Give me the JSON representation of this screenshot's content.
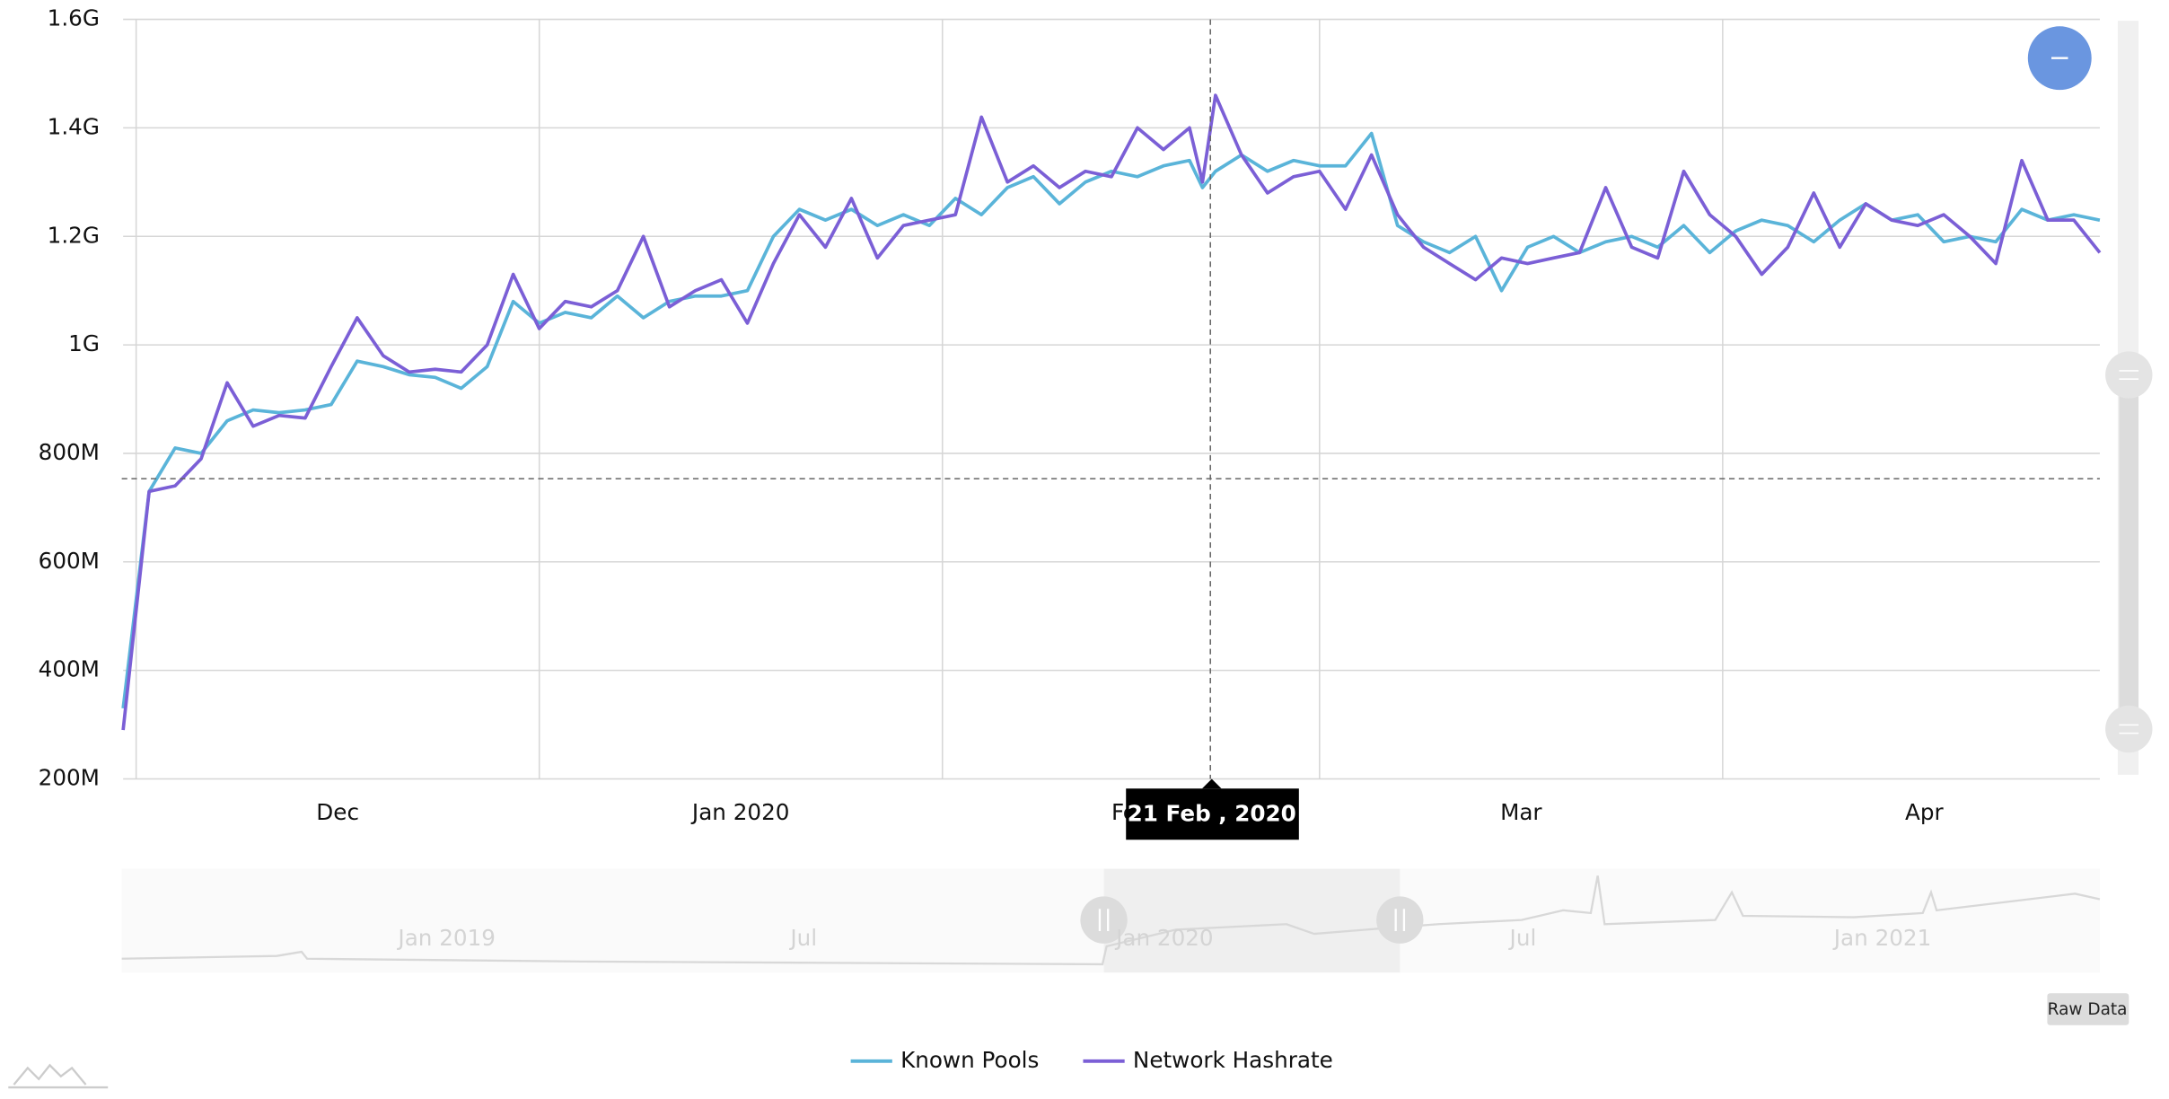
{
  "chart_data": {
    "type": "line",
    "x": [
      -1,
      1,
      3,
      5,
      7,
      9,
      11,
      13,
      15,
      17,
      19,
      21,
      23,
      25,
      27,
      29,
      31,
      33,
      35,
      37,
      39,
      41,
      43,
      45,
      47,
      49,
      51,
      53,
      55,
      57,
      59,
      61,
      63,
      65,
      67,
      69,
      71,
      73,
      75,
      77,
      79,
      81,
      82,
      83,
      85,
      87,
      89,
      91,
      93,
      95,
      97,
      99,
      101,
      103,
      105,
      107,
      109,
      111,
      113,
      115,
      117,
      119,
      121,
      123,
      125,
      127,
      129,
      131,
      133,
      135,
      137,
      139,
      141,
      143,
      145,
      147,
      149,
      151
    ],
    "series": [
      {
        "name": "Known Pools",
        "color": "#5ab4d9",
        "values": [
          330000000.0,
          730000000.0,
          810000000.0,
          800000000.0,
          860000000.0,
          880000000.0,
          875000000.0,
          880000000.0,
          890000000.0,
          970000000.0,
          960000000.0,
          945000000.0,
          940000000.0,
          920000000.0,
          960000000.0,
          1080000000.0,
          1040000000.0,
          1060000000.0,
          1050000000.0,
          1090000000.0,
          1050000000.0,
          1080000000.0,
          1090000000.0,
          1090000000.0,
          1100000000.0,
          1200000000.0,
          1250000000.0,
          1230000000.0,
          1250000000.0,
          1220000000.0,
          1240000000.0,
          1220000000.0,
          1270000000.0,
          1240000000.0,
          1290000000.0,
          1310000000.0,
          1260000000.0,
          1300000000.0,
          1320000000.0,
          1310000000.0,
          1330000000.0,
          1340000000.0,
          1290000000.0,
          1320000000.0,
          1350000000.0,
          1320000000.0,
          1340000000.0,
          1330000000.0,
          1330000000.0,
          1390000000.0,
          1220000000.0,
          1190000000.0,
          1170000000.0,
          1200000000.0,
          1100000000.0,
          1180000000.0,
          1200000000.0,
          1170000000.0,
          1190000000.0,
          1200000000.0,
          1180000000.0,
          1220000000.0,
          1170000000.0,
          1210000000.0,
          1230000000.0,
          1220000000.0,
          1190000000.0,
          1230000000.0,
          1260000000.0,
          1230000000.0,
          1240000000.0,
          1190000000.0,
          1200000000.0,
          1190000000.0,
          1250000000.0,
          1230000000.0,
          1240000000.0,
          1230000000.0
        ]
      },
      {
        "name": "Network Hashrate",
        "color": "#7b5fd6",
        "values": [
          290000000.0,
          730000000.0,
          740000000.0,
          790000000.0,
          930000000.0,
          850000000.0,
          870000000.0,
          865000000.0,
          960000000.0,
          1050000000.0,
          980000000.0,
          950000000.0,
          955000000.0,
          950000000.0,
          1000000000.0,
          1130000000.0,
          1030000000.0,
          1080000000.0,
          1070000000.0,
          1100000000.0,
          1200000000.0,
          1070000000.0,
          1100000000.0,
          1120000000.0,
          1040000000.0,
          1150000000.0,
          1240000000.0,
          1180000000.0,
          1270000000.0,
          1160000000.0,
          1220000000.0,
          1230000000.0,
          1240000000.0,
          1420000000.0,
          1300000000.0,
          1330000000.0,
          1290000000.0,
          1320000000.0,
          1310000000.0,
          1400000000.0,
          1360000000.0,
          1400000000.0,
          1300000000.0,
          1460000000.0,
          1350000000.0,
          1280000000.0,
          1310000000.0,
          1320000000.0,
          1250000000.0,
          1350000000.0,
          1240000000.0,
          1180000000.0,
          1150000000.0,
          1120000000.0,
          1160000000.0,
          1150000000.0,
          1160000000.0,
          1170000000.0,
          1290000000.0,
          1180000000.0,
          1160000000.0,
          1320000000.0,
          1240000000.0,
          1200000000.0,
          1130000000.0,
          1180000000.0,
          1280000000.0,
          1180000000.0,
          1260000000.0,
          1230000000.0,
          1220000000.0,
          1240000000.0,
          1200000000.0,
          1150000000.0,
          1340000000.0,
          1230000000.0,
          1230000000.0,
          1170000000.0
        ]
      }
    ],
    "xlim": [
      -1,
      151
    ],
    "xticks": [
      {
        "value": 0,
        "label": "Dec"
      },
      {
        "value": 31,
        "label": "Jan 2020"
      },
      {
        "value": 62,
        "label": "Feb"
      },
      {
        "value": 91,
        "label": "Mar"
      },
      {
        "value": 122,
        "label": "Apr"
      }
    ],
    "ylim": [
      200000000.0,
      1600000000.0
    ],
    "yticks": [
      {
        "value": 200000000.0,
        "label": "200M"
      },
      {
        "value": 400000000.0,
        "label": "400M"
      },
      {
        "value": 600000000.0,
        "label": "600M"
      },
      {
        "value": 800000000.0,
        "label": "800M"
      },
      {
        "value": 1000000000.0,
        "label": "1G"
      },
      {
        "value": 1200000000.0,
        "label": "1.2G"
      },
      {
        "value": 1400000000.0,
        "label": "1.4G"
      },
      {
        "value": 1600000000.0,
        "label": "1.6G"
      }
    ],
    "grid": true,
    "tooltip": "21 Feb , 2020",
    "navigator_labels": [
      "Jan 2019",
      "Jul",
      "Jan 2020",
      "Jul",
      "Jan 2021"
    ],
    "button": "Raw Data"
  }
}
